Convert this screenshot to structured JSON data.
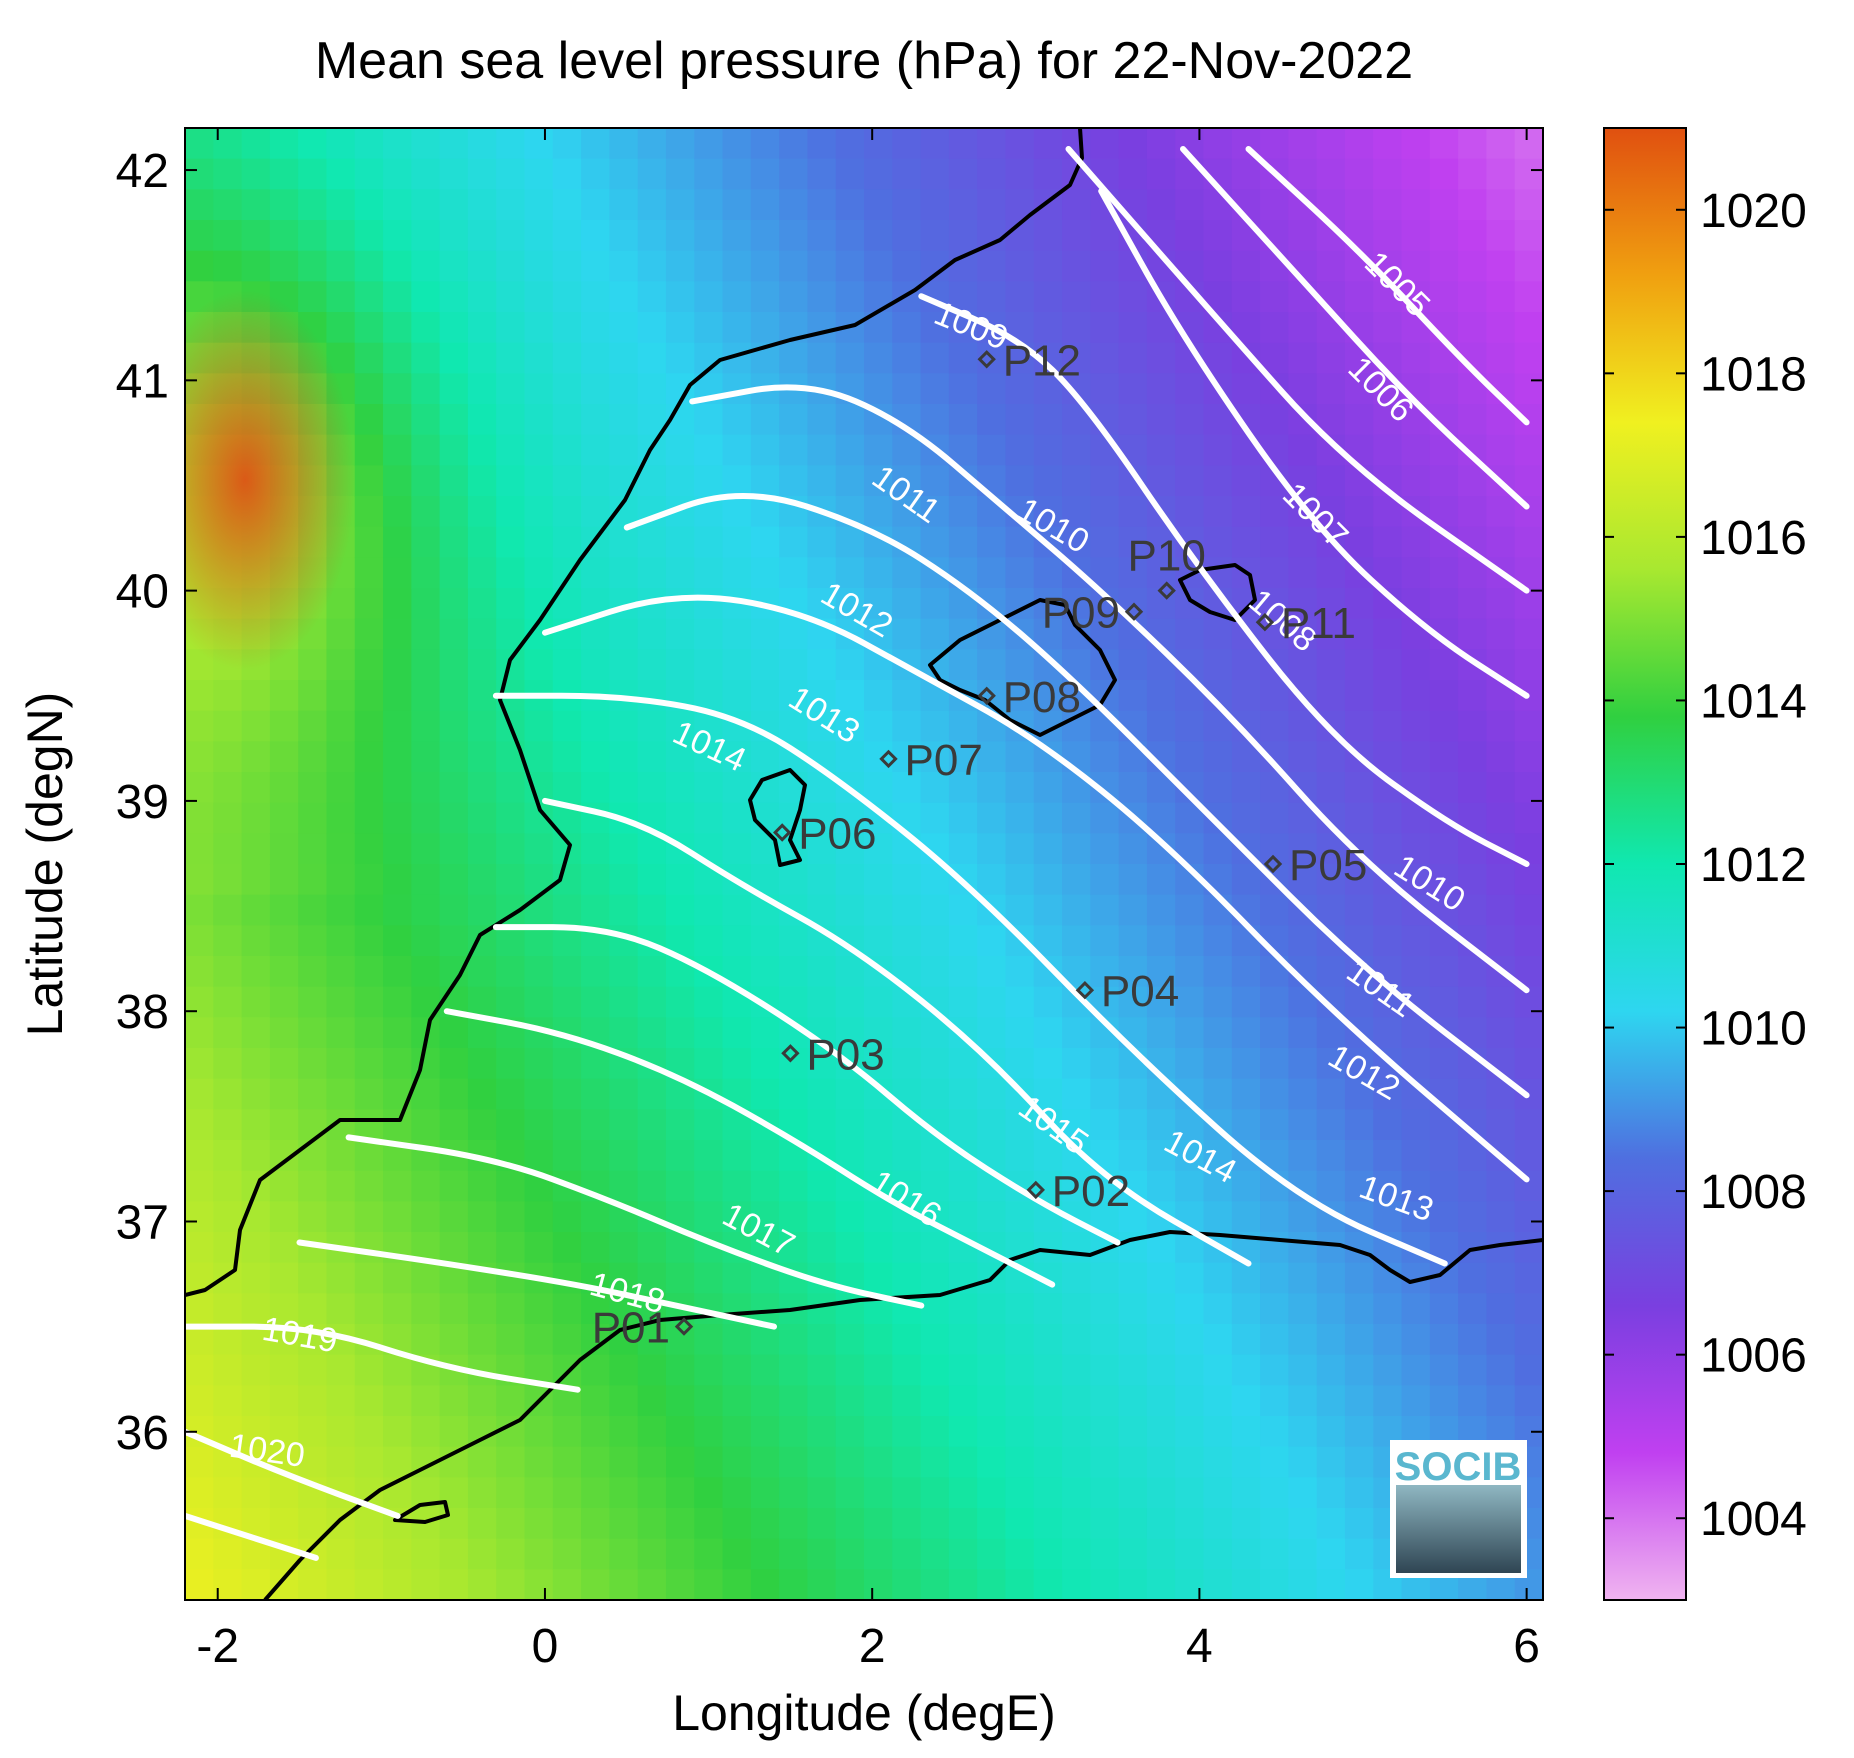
{
  "title": "Mean sea level pressure (hPa) for 22-Nov-2022",
  "xlabel": "Longitude (degE)",
  "ylabel": "Latitude (degN)",
  "logo_text": "SOCIB",
  "chart_data": {
    "type": "heatmap",
    "title": "Mean sea level pressure (hPa) for 22-Nov-2022",
    "xlabel": "Longitude (degE)",
    "ylabel": "Latitude (degN)",
    "xlim": [
      -2.2,
      6.1
    ],
    "ylim": [
      35.2,
      42.2
    ],
    "x_ticks": [
      -2,
      0,
      2,
      4,
      6
    ],
    "y_ticks": [
      36,
      37,
      38,
      39,
      40,
      41,
      42
    ],
    "colorbar": {
      "range": [
        1003,
        1021
      ],
      "ticks": [
        1004,
        1006,
        1008,
        1010,
        1012,
        1014,
        1016,
        1018,
        1020
      ],
      "colors": [
        "#f0b4f0",
        "#c040f0",
        "#7a3fe0",
        "#4f6fe0",
        "#2ed6f0",
        "#10e8b0",
        "#30d040",
        "#a8e830",
        "#f0f020",
        "#f0a010",
        "#e05010"
      ]
    },
    "contours": [
      {
        "level": 1005,
        "points": [
          [
            4.3,
            42.1
          ],
          [
            5.0,
            41.6
          ],
          [
            5.6,
            41.1
          ],
          [
            6.0,
            40.8
          ]
        ]
      },
      {
        "level": 1006,
        "points": [
          [
            3.9,
            42.1
          ],
          [
            4.6,
            41.5
          ],
          [
            5.3,
            40.9
          ],
          [
            6.0,
            40.4
          ]
        ]
      },
      {
        "level": 1007,
        "points": [
          [
            3.2,
            42.1
          ],
          [
            4.1,
            41.3
          ],
          [
            4.9,
            40.6
          ],
          [
            6.0,
            40.0
          ]
        ]
      },
      {
        "level": 1008,
        "points": [
          [
            3.4,
            41.9
          ],
          [
            3.9,
            41.2
          ],
          [
            4.7,
            40.3
          ],
          [
            5.4,
            39.8
          ],
          [
            6.0,
            39.5
          ]
        ]
      },
      {
        "level": 1009,
        "points": [
          [
            2.3,
            41.4
          ],
          [
            2.9,
            41.2
          ],
          [
            3.3,
            40.9
          ],
          [
            4.0,
            40.1
          ],
          [
            4.8,
            39.3
          ],
          [
            5.5,
            38.9
          ],
          [
            6.0,
            38.7
          ]
        ]
      },
      {
        "level": 1010,
        "points": [
          [
            0.9,
            40.9
          ],
          [
            1.6,
            41.0
          ],
          [
            2.2,
            40.8
          ],
          [
            2.8,
            40.4
          ],
          [
            3.4,
            40.0
          ],
          [
            4.2,
            39.4
          ],
          [
            5.0,
            38.7
          ],
          [
            6.0,
            38.1
          ]
        ]
      },
      {
        "level": 1011,
        "points": [
          [
            0.5,
            40.3
          ],
          [
            1.2,
            40.5
          ],
          [
            2.0,
            40.3
          ],
          [
            2.6,
            40.0
          ],
          [
            3.2,
            39.6
          ],
          [
            4.1,
            38.9
          ],
          [
            5.0,
            38.2
          ],
          [
            6.0,
            37.6
          ]
        ]
      },
      {
        "level": 1012,
        "points": [
          [
            0.0,
            39.8
          ],
          [
            0.8,
            40.0
          ],
          [
            1.6,
            39.9
          ],
          [
            2.3,
            39.6
          ],
          [
            3.0,
            39.3
          ],
          [
            3.8,
            38.8
          ],
          [
            4.8,
            38.0
          ],
          [
            6.0,
            37.2
          ]
        ]
      },
      {
        "level": 1013,
        "points": [
          [
            -0.3,
            39.5
          ],
          [
            0.5,
            39.5
          ],
          [
            1.2,
            39.4
          ],
          [
            1.8,
            39.1
          ],
          [
            2.6,
            38.6
          ],
          [
            3.6,
            37.8
          ],
          [
            4.6,
            37.1
          ],
          [
            5.5,
            36.8
          ]
        ]
      },
      {
        "level": 1014,
        "points": [
          [
            0.0,
            39.0
          ],
          [
            0.6,
            38.9
          ],
          [
            1.2,
            38.6
          ],
          [
            1.9,
            38.3
          ],
          [
            2.7,
            37.8
          ],
          [
            3.4,
            37.2
          ],
          [
            4.3,
            36.8
          ]
        ]
      },
      {
        "level": 1015,
        "points": [
          [
            -0.3,
            38.4
          ],
          [
            0.4,
            38.4
          ],
          [
            1.0,
            38.2
          ],
          [
            1.8,
            37.8
          ],
          [
            2.4,
            37.4
          ],
          [
            3.0,
            37.1
          ],
          [
            3.5,
            36.9
          ]
        ]
      },
      {
        "level": 1016,
        "points": [
          [
            -0.6,
            38.0
          ],
          [
            0.1,
            37.9
          ],
          [
            0.8,
            37.7
          ],
          [
            1.5,
            37.4
          ],
          [
            2.1,
            37.1
          ],
          [
            2.6,
            36.9
          ],
          [
            3.1,
            36.7
          ]
        ]
      },
      {
        "level": 1017,
        "points": [
          [
            -1.2,
            37.4
          ],
          [
            -0.3,
            37.3
          ],
          [
            0.4,
            37.1
          ],
          [
            1.0,
            36.9
          ],
          [
            1.7,
            36.7
          ],
          [
            2.3,
            36.6
          ]
        ]
      },
      {
        "level": 1018,
        "points": [
          [
            -1.5,
            36.9
          ],
          [
            -0.6,
            36.8
          ],
          [
            0.2,
            36.7
          ],
          [
            0.8,
            36.6
          ],
          [
            1.4,
            36.5
          ]
        ]
      },
      {
        "level": 1019,
        "points": [
          [
            -2.2,
            36.5
          ],
          [
            -1.4,
            36.5
          ],
          [
            -0.6,
            36.3
          ],
          [
            0.2,
            36.2
          ]
        ]
      },
      {
        "level": 1020,
        "points": [
          [
            -2.2,
            36.0
          ],
          [
            -1.6,
            35.8
          ],
          [
            -0.9,
            35.6
          ]
        ]
      },
      {
        "level": 1021,
        "points": [
          [
            -2.2,
            35.6
          ],
          [
            -1.4,
            35.4
          ]
        ]
      }
    ],
    "contour_labels": [
      {
        "text": "1005",
        "lon": 5.2,
        "lat": 41.45,
        "angle": 45
      },
      {
        "text": "1006",
        "lon": 5.1,
        "lat": 40.95,
        "angle": 45
      },
      {
        "text": "1007",
        "lon": 4.7,
        "lat": 40.35,
        "angle": 45
      },
      {
        "text": "1008",
        "lon": 4.5,
        "lat": 39.85,
        "angle": 40
      },
      {
        "text": "1009",
        "lon": 2.6,
        "lat": 41.25,
        "angle": 22
      },
      {
        "text": "1010",
        "lon": 3.1,
        "lat": 40.3,
        "angle": 30
      },
      {
        "text": "1010",
        "lon": 5.4,
        "lat": 38.6,
        "angle": 32
      },
      {
        "text": "1011",
        "lon": 2.2,
        "lat": 40.45,
        "angle": 35
      },
      {
        "text": "1011",
        "lon": 5.1,
        "lat": 38.1,
        "angle": 35
      },
      {
        "text": "1012",
        "lon": 1.9,
        "lat": 39.9,
        "angle": 30
      },
      {
        "text": "1012",
        "lon": 5.0,
        "lat": 37.7,
        "angle": 30
      },
      {
        "text": "1013",
        "lon": 1.7,
        "lat": 39.4,
        "angle": 32
      },
      {
        "text": "1013",
        "lon": 5.2,
        "lat": 37.1,
        "angle": 20
      },
      {
        "text": "1014",
        "lon": 1.0,
        "lat": 39.25,
        "angle": 25
      },
      {
        "text": "1014",
        "lon": 4.0,
        "lat": 37.3,
        "angle": 28
      },
      {
        "text": "1015",
        "lon": 3.1,
        "lat": 37.45,
        "angle": 35
      },
      {
        "text": "1016",
        "lon": 2.2,
        "lat": 37.1,
        "angle": 32
      },
      {
        "text": "1017",
        "lon": 1.3,
        "lat": 36.95,
        "angle": 28
      },
      {
        "text": "1018",
        "lon": 0.5,
        "lat": 36.65,
        "angle": 15
      },
      {
        "text": "1019",
        "lon": -1.5,
        "lat": 36.45,
        "angle": 10
      },
      {
        "text": "1020",
        "lon": -1.7,
        "lat": 35.9,
        "angle": 8
      }
    ],
    "stations": [
      {
        "name": "P01",
        "lon": 0.85,
        "lat": 36.5,
        "label_side": "left"
      },
      {
        "name": "P02",
        "lon": 3.0,
        "lat": 37.15,
        "label_side": "right"
      },
      {
        "name": "P03",
        "lon": 1.5,
        "lat": 37.8,
        "label_side": "right"
      },
      {
        "name": "P04",
        "lon": 3.3,
        "lat": 38.1,
        "label_side": "right"
      },
      {
        "name": "P05",
        "lon": 4.45,
        "lat": 38.7,
        "label_side": "right"
      },
      {
        "name": "P06",
        "lon": 1.45,
        "lat": 38.85,
        "label_side": "right"
      },
      {
        "name": "P07",
        "lon": 2.1,
        "lat": 39.2,
        "label_side": "right"
      },
      {
        "name": "P08",
        "lon": 2.7,
        "lat": 39.5,
        "label_side": "right"
      },
      {
        "name": "P09",
        "lon": 3.6,
        "lat": 39.9,
        "label_side": "left"
      },
      {
        "name": "P10",
        "lon": 3.8,
        "lat": 40.0,
        "label_side": "top"
      },
      {
        "name": "P11",
        "lon": 4.4,
        "lat": 39.85,
        "label_side": "right"
      },
      {
        "name": "P12",
        "lon": 2.7,
        "lat": 41.1,
        "label_side": "right"
      }
    ]
  }
}
